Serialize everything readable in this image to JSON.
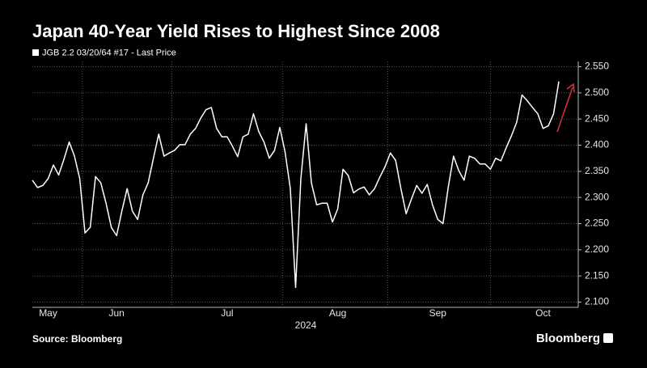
{
  "chart_data": {
    "type": "line",
    "title": "Japan 40-Year Yield Rises to Highest Since 2008",
    "x_label": "2024",
    "source": "Source: Bloomberg",
    "brand": "Bloomberg",
    "categories": [
      null,
      null,
      null,
      "May",
      null,
      null,
      null,
      null,
      null,
      null,
      null,
      null,
      null,
      null,
      null,
      null,
      "Jun",
      null,
      null,
      null,
      null,
      null,
      null,
      null,
      null,
      null,
      null,
      null,
      null,
      null,
      null,
      null,
      null,
      null,
      null,
      null,
      null,
      "Jul",
      null,
      null,
      null,
      null,
      null,
      null,
      null,
      null,
      null,
      null,
      null,
      null,
      null,
      null,
      null,
      null,
      null,
      null,
      null,
      null,
      "Aug",
      null,
      null,
      null,
      null,
      null,
      null,
      null,
      null,
      null,
      null,
      null,
      null,
      null,
      null,
      null,
      null,
      null,
      null,
      "Sep",
      null,
      null,
      null,
      null,
      null,
      null,
      null,
      null,
      null,
      null,
      null,
      null,
      null,
      null,
      null,
      null,
      null,
      null,
      null,
      "Oct",
      null,
      null,
      null
    ],
    "series": [
      {
        "name": "JGB 2.2 03/20/64 #17 - Last Price",
        "color": "#ffffff",
        "values": [
          2.333,
          2.319,
          2.323,
          2.336,
          2.362,
          2.343,
          2.373,
          2.406,
          2.379,
          2.336,
          2.232,
          2.243,
          2.34,
          2.328,
          2.289,
          2.243,
          2.227,
          2.274,
          2.317,
          2.274,
          2.258,
          2.305,
          2.328,
          2.375,
          2.421,
          2.379,
          2.385,
          2.39,
          2.401,
          2.401,
          2.421,
          2.432,
          2.452,
          2.468,
          2.472,
          2.432,
          2.416,
          2.416,
          2.398,
          2.378,
          2.416,
          2.421,
          2.46,
          2.426,
          2.406,
          2.375,
          2.39,
          2.434,
          2.387,
          2.317,
          2.128,
          2.336,
          2.441,
          2.328,
          2.286,
          2.289,
          2.289,
          2.253,
          2.278,
          2.354,
          2.342,
          2.309,
          2.316,
          2.32,
          2.305,
          2.317,
          2.339,
          2.359,
          2.385,
          2.371,
          2.317,
          2.269,
          2.297,
          2.323,
          2.308,
          2.325,
          2.286,
          2.258,
          2.25,
          2.32,
          2.379,
          2.351,
          2.333,
          2.379,
          2.375,
          2.364,
          2.364,
          2.354,
          2.375,
          2.37,
          2.395,
          2.418,
          2.444,
          2.496,
          2.485,
          2.472,
          2.46,
          2.432,
          2.437,
          2.46,
          2.522
        ]
      }
    ],
    "ylim": [
      2.09,
      2.56
    ],
    "yticks": [
      {
        "value": 2.1,
        "label": "2.100"
      },
      {
        "value": 2.15,
        "label": "2.150"
      },
      {
        "value": 2.2,
        "label": "2.200"
      },
      {
        "value": 2.25,
        "label": "2.250"
      },
      {
        "value": 2.3,
        "label": "2.300"
      },
      {
        "value": 2.35,
        "label": "2.350"
      },
      {
        "value": 2.4,
        "label": "2.400"
      },
      {
        "value": 2.45,
        "label": "2.450"
      },
      {
        "value": 2.5,
        "label": "2.500"
      },
      {
        "value": 2.55,
        "label": "2.550"
      }
    ],
    "grid": true,
    "y_axis_side": "right"
  }
}
